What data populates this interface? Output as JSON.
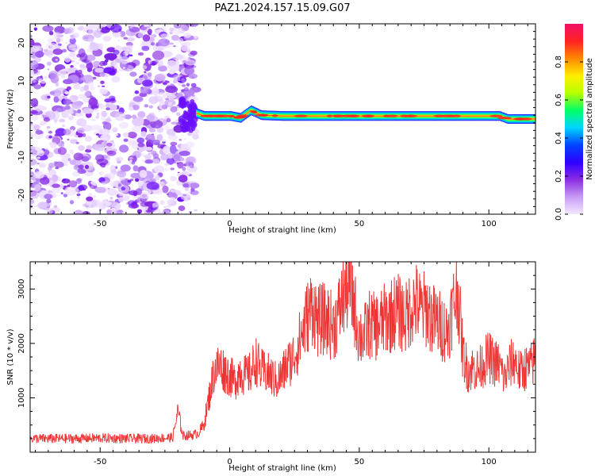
{
  "title": "PAZ1.2024.157.15.09.G07",
  "colors": {
    "axis": "#000000",
    "snr_line": "#ee3333",
    "noise": "#8a2be2",
    "colormap": [
      "#f3e8ff",
      "#c79bf5",
      "#8a2be2",
      "#2d00ff",
      "#0044ff",
      "#00d5ff",
      "#00ff66",
      "#b7ff00",
      "#ffee00",
      "#ff8800",
      "#ff2222",
      "#ee1166"
    ]
  },
  "chart_data": [
    {
      "type": "heatmap",
      "title": "",
      "xlabel": "Height of straight line (km)",
      "ylabel": "Frequency (Hz)",
      "xlim": [
        -77,
        118
      ],
      "ylim": [
        -25,
        25
      ],
      "xticks": [
        -50,
        0,
        50,
        100
      ],
      "yticks": [
        -20,
        -10,
        0,
        10,
        20
      ],
      "colorbar": {
        "label": "Normalized spectral amplitude",
        "range": [
          0,
          1
        ],
        "ticks": [
          "0.0",
          "0.2",
          "0.4",
          "0.6",
          "0.8"
        ]
      },
      "features": {
        "noise_region_x": [
          -77,
          -13
        ],
        "signal_start_x": -13,
        "signal_frequency": [
          {
            "x": -13,
            "f": 1.5
          },
          {
            "x": -10,
            "f": 0.8
          },
          {
            "x": 0,
            "f": 0.8
          },
          {
            "x": 4,
            "f": 0.3
          },
          {
            "x": 8,
            "f": 2.3
          },
          {
            "x": 12,
            "f": 1.0
          },
          {
            "x": 20,
            "f": 0.8
          },
          {
            "x": 104,
            "f": 0.8
          },
          {
            "x": 107,
            "f": 0.0
          },
          {
            "x": 118,
            "f": 0.0
          }
        ]
      }
    },
    {
      "type": "line",
      "title": "",
      "xlabel": "Height of straight line (km)",
      "ylabel": "SNR (10 * v/v)",
      "xlim": [
        -77,
        118
      ],
      "ylim": [
        0,
        3500
      ],
      "xticks": [
        -50,
        0,
        50,
        100
      ],
      "yticks": [
        1000,
        2000,
        3000
      ],
      "series": [
        {
          "x": [
            -77,
            -70,
            -60,
            -50,
            -40,
            -30,
            -22,
            -20,
            -18,
            -14,
            -12,
            -10,
            -8,
            -6,
            -4,
            -2,
            0,
            2,
            4,
            6,
            8,
            10,
            12,
            14,
            16,
            18,
            20,
            22,
            24,
            26,
            28,
            30,
            32,
            34,
            36,
            38,
            40,
            42,
            44,
            46,
            48,
            50,
            52,
            54,
            56,
            58,
            60,
            62,
            64,
            66,
            68,
            70,
            72,
            74,
            76,
            78,
            80,
            82,
            84,
            86,
            88,
            90,
            92,
            94,
            96,
            98,
            100,
            102,
            104,
            106,
            108,
            110,
            112,
            114,
            116,
            118
          ],
          "values": [
            250,
            250,
            250,
            260,
            250,
            250,
            270,
            750,
            300,
            320,
            350,
            500,
            1000,
            1500,
            1600,
            1500,
            1400,
            1300,
            1500,
            1400,
            1450,
            1700,
            1500,
            1450,
            1400,
            1300,
            1400,
            1600,
            1700,
            1900,
            2200,
            2500,
            2700,
            2400,
            2450,
            2400,
            2300,
            2550,
            2900,
            3100,
            2700,
            2150,
            2150,
            2350,
            2300,
            2350,
            2450,
            2500,
            2600,
            2550,
            2450,
            2700,
            2750,
            2600,
            2650,
            2450,
            2400,
            2300,
            2200,
            2650,
            3000,
            1800,
            1500,
            1550,
            1500,
            1650,
            1750,
            1650,
            1600,
            1350,
            1600,
            1700,
            1450,
            1550,
            1550,
            1750
          ]
        }
      ]
    }
  ]
}
